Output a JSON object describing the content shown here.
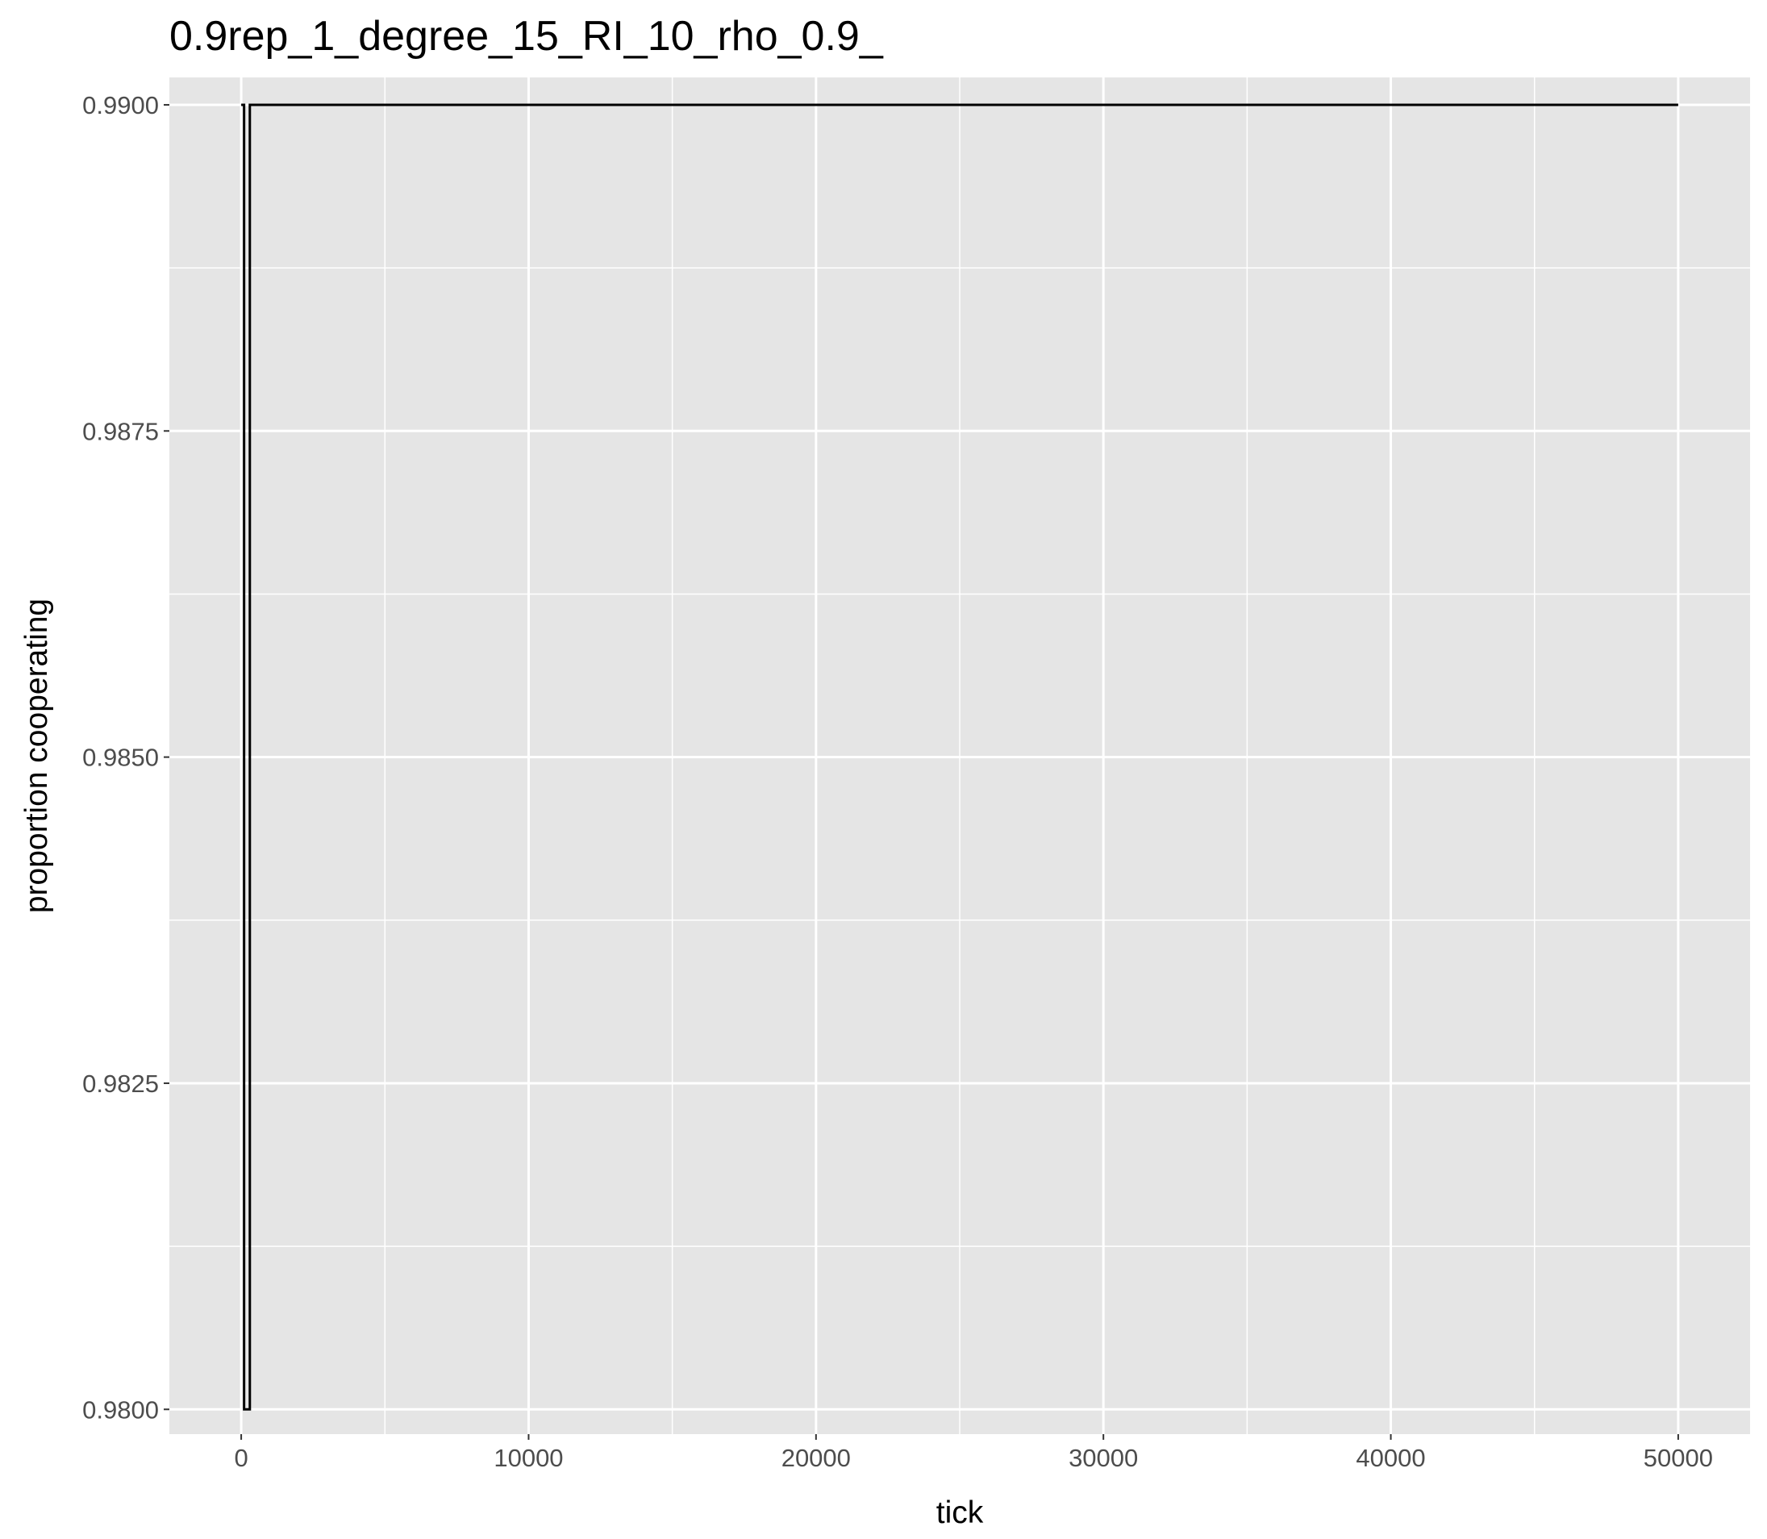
{
  "chart_data": {
    "type": "line",
    "title": "0.9rep_1_degree_15_RI_10_rho_0.9_",
    "xlabel": "tick",
    "ylabel": "proportion cooperating",
    "xlim": [
      -2500,
      52500
    ],
    "ylim": [
      0.97981,
      0.99021
    ],
    "xticks": [
      0,
      10000,
      20000,
      30000,
      40000,
      50000
    ],
    "xtick_labels": [
      "0",
      "10000",
      "20000",
      "30000",
      "40000",
      "50000"
    ],
    "yticks": [
      0.98,
      0.9825,
      0.985,
      0.9875,
      0.99
    ],
    "ytick_labels": [
      "0.9800",
      "0.9825",
      "0.9850",
      "0.9875",
      "0.9900"
    ],
    "grid": true,
    "colors": {
      "panel": "#E5E5E5",
      "grid": "#FFFFFF",
      "line": "#000000",
      "ticks": "#333333"
    },
    "series": [
      {
        "x": [
          0,
          100,
          100,
          300,
          300,
          50000
        ],
        "values": [
          0.99,
          0.99,
          0.98,
          0.98,
          0.99,
          0.99
        ]
      }
    ]
  }
}
